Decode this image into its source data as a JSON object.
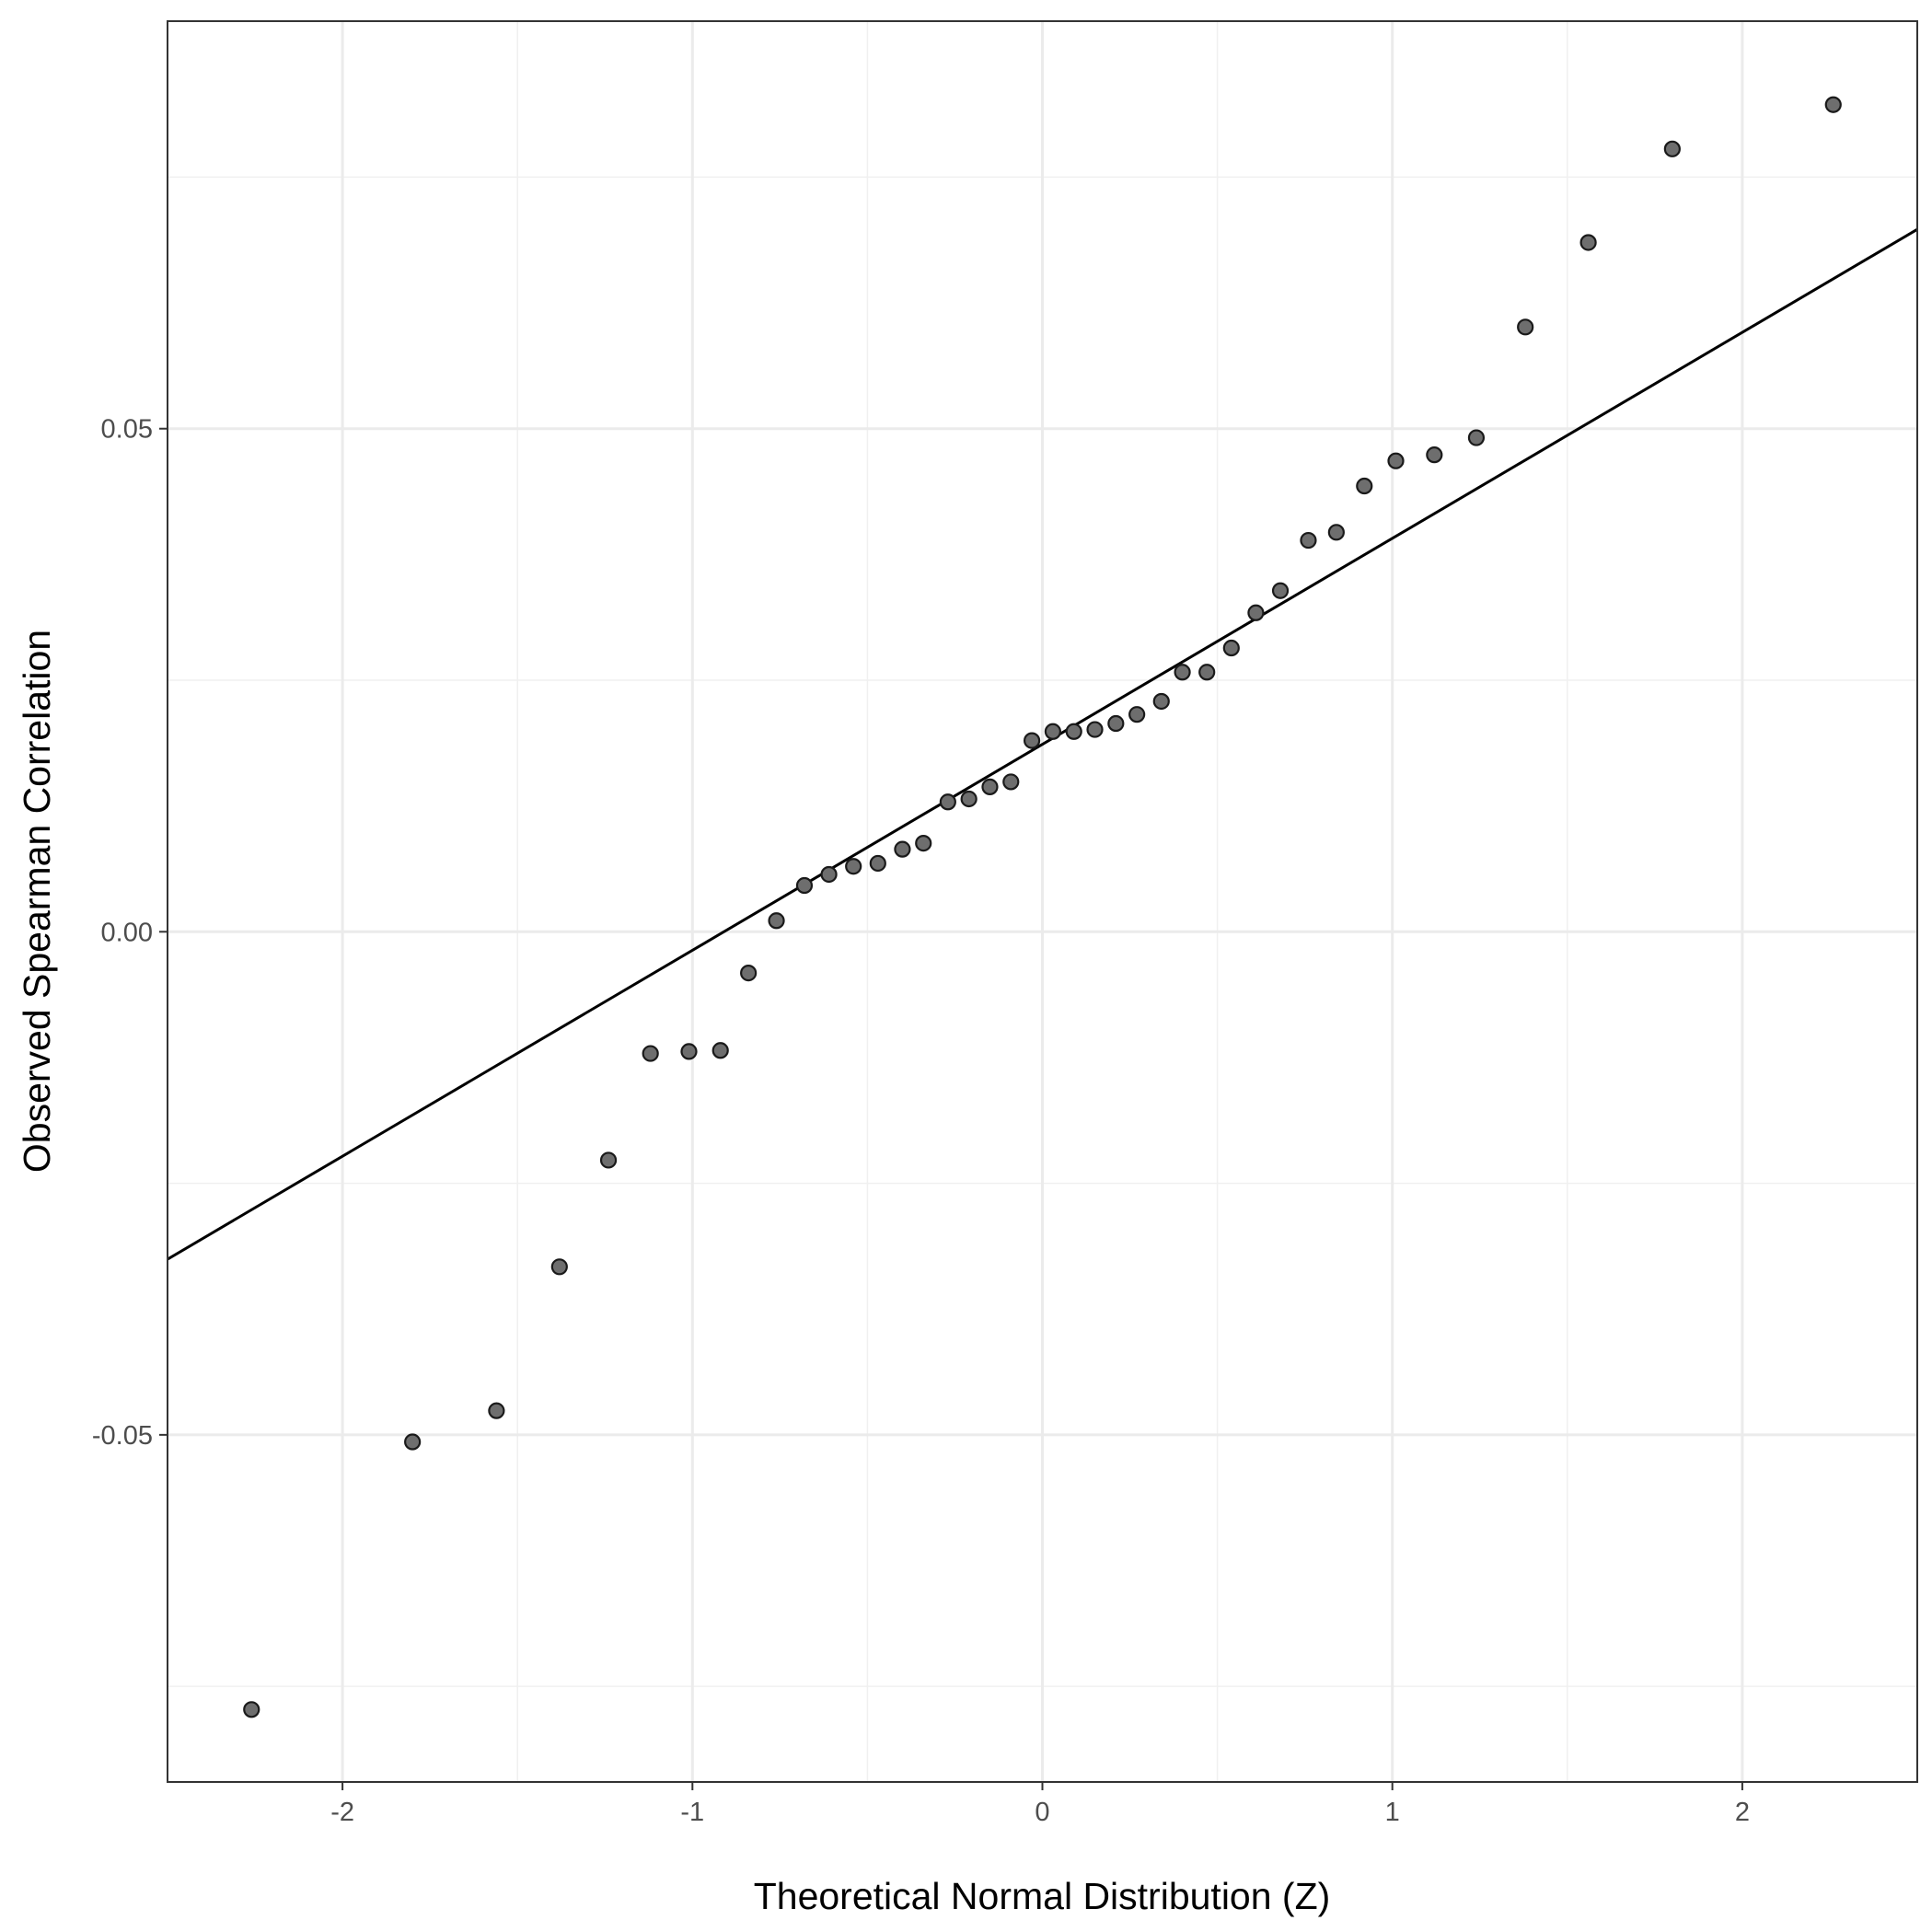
{
  "chart_data": {
    "type": "scatter",
    "title": "",
    "xlabel": "Theoretical Normal Distribution (Z)",
    "ylabel": "Observed Spearman Correlation",
    "xlim": [
      -2.5,
      2.5
    ],
    "ylim": [
      -0.0845,
      0.0905
    ],
    "x_ticks": [
      -2,
      -1,
      0,
      1,
      2
    ],
    "x_tick_labels": [
      "-2",
      "-1",
      "0",
      "1",
      "2"
    ],
    "y_ticks": [
      -0.05,
      0.0,
      0.05
    ],
    "y_tick_labels": [
      "-0.05",
      "0.00",
      "0.05"
    ],
    "grid": true,
    "series": [
      {
        "kind": "points",
        "color": "#6e6e6e",
        "x": [
          -2.26,
          -1.8,
          -1.56,
          -1.38,
          -1.24,
          -1.12,
          -1.01,
          -0.92,
          -0.84,
          -0.76,
          -0.68,
          -0.61,
          -0.54,
          -0.47,
          -0.4,
          -0.34,
          -0.27,
          -0.21,
          -0.15,
          -0.09,
          -0.03,
          0.03,
          0.09,
          0.15,
          0.21,
          0.27,
          0.34,
          0.4,
          0.47,
          0.54,
          0.61,
          0.68,
          0.76,
          0.84,
          0.92,
          1.01,
          1.12,
          1.24,
          1.38,
          1.56,
          1.8,
          2.26
        ],
        "y": [
          -0.0773,
          -0.0507,
          -0.0476,
          -0.0333,
          -0.0227,
          -0.0121,
          -0.0119,
          -0.0118,
          -0.0041,
          0.0011,
          0.0046,
          0.0057,
          0.0065,
          0.0068,
          0.0082,
          0.0088,
          0.0129,
          0.0132,
          0.0144,
          0.0149,
          0.019,
          0.0199,
          0.0199,
          0.0201,
          0.0207,
          0.0216,
          0.0229,
          0.0258,
          0.0258,
          0.0282,
          0.0317,
          0.0339,
          0.0389,
          0.0397,
          0.0443,
          0.0468,
          0.0474,
          0.0491,
          0.0601,
          0.0685,
          0.0778,
          0.0822
        ]
      },
      {
        "kind": "reference-line",
        "color": "#000000",
        "slope": 0.02047,
        "intercept": 0.01863
      }
    ]
  }
}
